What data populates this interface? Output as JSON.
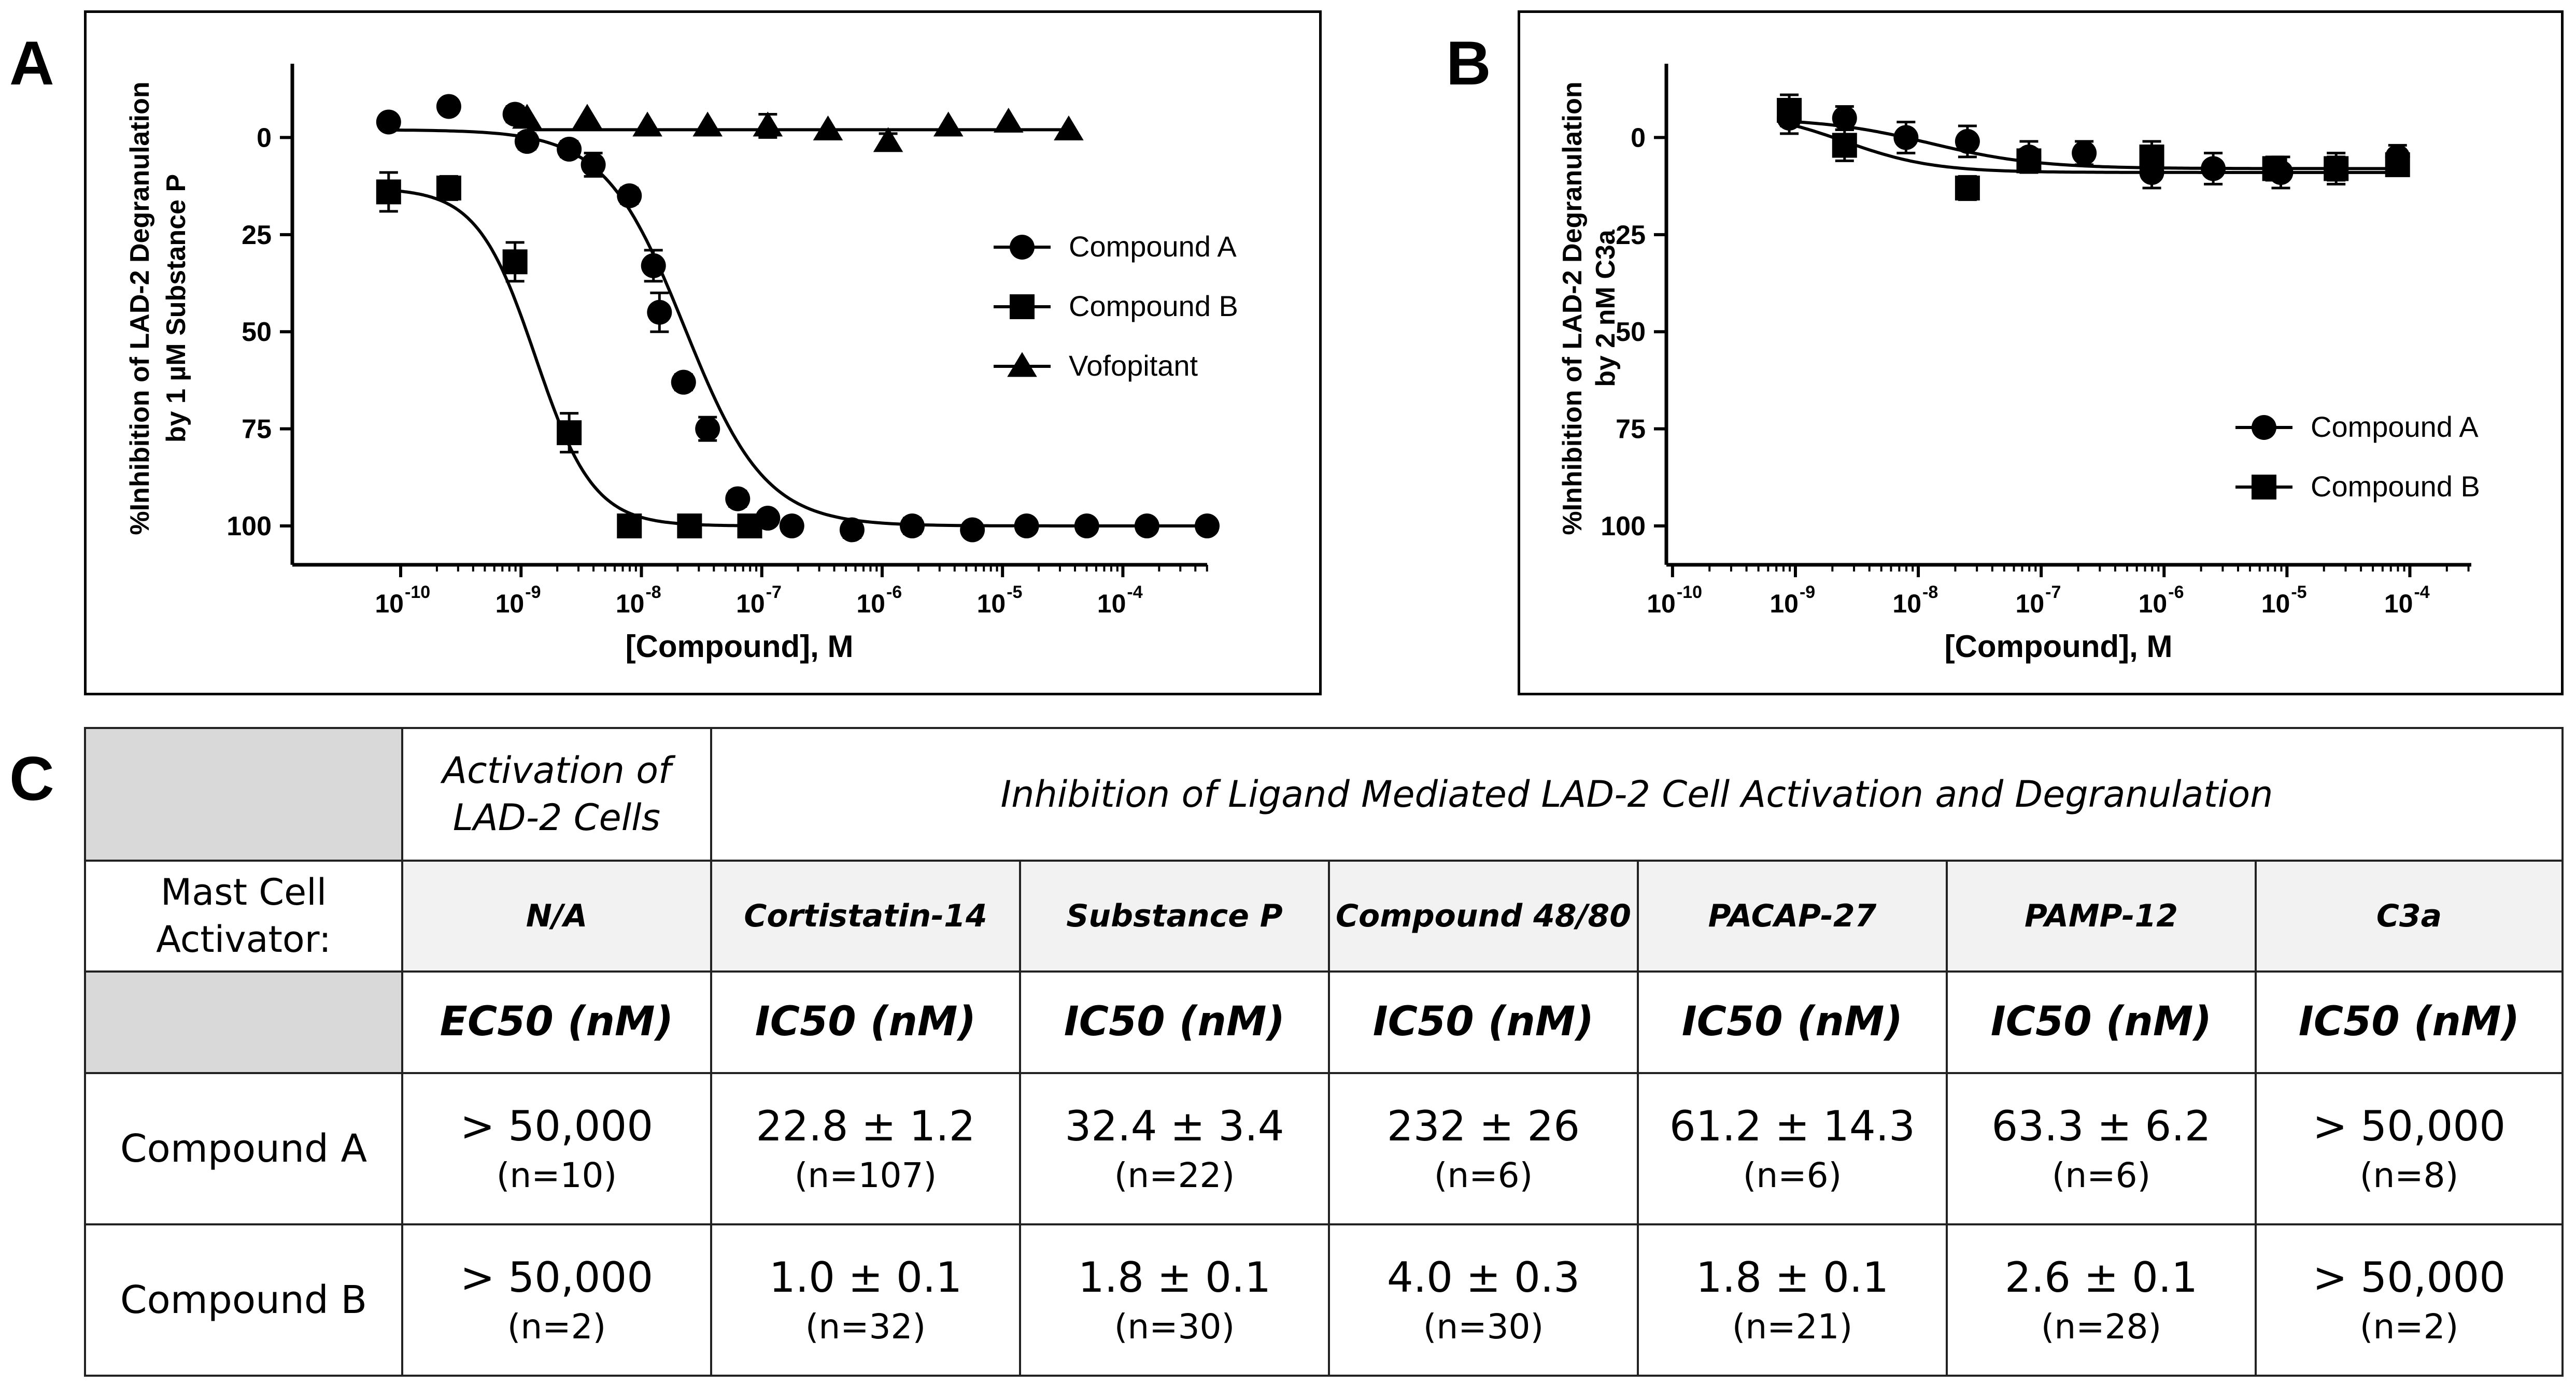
{
  "panel_labels": {
    "a": "A",
    "b": "B",
    "c": "C"
  },
  "chart_data": [
    {
      "type": "scatter",
      "panel": "A",
      "ylabel_line1": "%Inhibition of LAD-2 Degranulation",
      "ylabel_line2": "by 1 µM Substance P",
      "xlabel": "[Compound], M",
      "xscale": "log",
      "xlim_exp": [
        -10.9,
        -3.3
      ],
      "ylim": [
        110,
        -19
      ],
      "yaxis_inverted": true,
      "yticks": [
        "0",
        "25",
        "50",
        "75",
        "100"
      ],
      "xtick_exps": [
        -10,
        -9,
        -8,
        -7,
        -6,
        -5,
        -4
      ],
      "xtick_labels": [
        "10",
        "10",
        "10",
        "10",
        "10",
        "10",
        "10"
      ],
      "xtick_sups": [
        "-10",
        "-9",
        "-8",
        "-7",
        "-6",
        "-5",
        "-4"
      ],
      "legend_position": "right",
      "series": [
        {
          "name": "Compound A",
          "marker": "circle",
          "log_x": [
            -10.1,
            -9.6,
            -9.05,
            -8.95,
            -8.6,
            -8.4,
            -8.1,
            -7.9,
            -7.85,
            -7.65,
            -7.45,
            -7.2,
            -6.95,
            -6.75,
            -6.25,
            -5.75,
            -5.25,
            -4.8,
            -4.3,
            -3.8,
            -3.3
          ],
          "y": [
            -4,
            -8,
            -6,
            1,
            3,
            7,
            15,
            33,
            45,
            63,
            75,
            93,
            98,
            100,
            101,
            100,
            101,
            100,
            100,
            100,
            100
          ],
          "err": [
            0,
            0,
            2,
            2,
            2,
            3,
            2,
            4,
            5,
            2,
            3,
            2,
            1,
            1,
            2,
            2,
            1,
            1,
            1,
            1,
            1
          ],
          "fit_log_ic50": -7.64,
          "fit_hill": 1.3,
          "fit_bottom": -2,
          "fit_top": 100
        },
        {
          "name": "Compound B",
          "marker": "square",
          "log_x": [
            -10.1,
            -9.6,
            -9.05,
            -8.6,
            -8.1,
            -7.6,
            -7.1
          ],
          "y": [
            14,
            13,
            32,
            76,
            100,
            100,
            100
          ],
          "err": [
            5,
            3,
            5,
            5,
            1,
            1,
            1
          ],
          "fit_log_ic50": -8.88,
          "fit_hill": 1.8,
          "fit_bottom": 13,
          "fit_top": 100
        },
        {
          "name": "Vofopitant",
          "marker": "triangle",
          "log_x": [
            -8.95,
            -8.45,
            -7.95,
            -7.45,
            -6.95,
            -6.45,
            -5.95,
            -5.45,
            -4.95,
            -4.45
          ],
          "y": [
            -5,
            -5,
            -3,
            -3,
            -3,
            -2,
            1,
            -3,
            -4,
            -2
          ],
          "err": [
            0,
            0,
            0,
            0,
            3,
            0,
            2,
            0,
            0,
            0
          ],
          "fit_flat": -2
        }
      ]
    },
    {
      "type": "scatter",
      "panel": "B",
      "ylabel_line1": "%Inhibition of LAD-2 Degranulation",
      "ylabel_line2": "by 2 nM C3a",
      "xlabel": "[Compound], M",
      "xscale": "log",
      "xlim_exp": [
        -10.05,
        -3.5
      ],
      "ylim": [
        110,
        -19
      ],
      "yaxis_inverted": true,
      "yticks": [
        "0",
        "25",
        "50",
        "75",
        "100"
      ],
      "xtick_exps": [
        -10,
        -9,
        -8,
        -7,
        -6,
        -5,
        -4
      ],
      "xtick_labels": [
        "10",
        "10",
        "10",
        "10",
        "10",
        "10",
        "10"
      ],
      "xtick_sups": [
        "-10",
        "-9",
        "-8",
        "-7",
        "-6",
        "-5",
        "-4"
      ],
      "legend_position": "bottom-right",
      "series": [
        {
          "name": "Compound A",
          "marker": "circle",
          "log_x": [
            -9.05,
            -8.6,
            -8.1,
            -7.6,
            -7.1,
            -6.65,
            -6.1,
            -5.6,
            -5.05,
            -4.6,
            -4.1
          ],
          "y": [
            -5,
            -5,
            0,
            1,
            5,
            4,
            9,
            8,
            9,
            8,
            5
          ],
          "err": [
            4,
            3,
            4,
            4,
            4,
            3,
            4,
            4,
            4,
            4,
            3
          ],
          "fit_log_ic50": -7.9,
          "fit_hill": 1.0,
          "fit_bottom": -5,
          "fit_top": 8
        },
        {
          "name": "Compound B",
          "marker": "square",
          "log_x": [
            -9.05,
            -8.6,
            -7.6,
            -7.1,
            -6.1,
            -5.1,
            -4.6,
            -4.1
          ],
          "y": [
            -7,
            2,
            13,
            6,
            5,
            8,
            8,
            7
          ],
          "err": [
            4,
            4,
            3,
            3,
            4,
            3,
            3,
            2
          ],
          "fit_log_ic50": -8.6,
          "fit_hill": 1.2,
          "fit_bottom": -7,
          "fit_top": 9
        }
      ]
    }
  ],
  "table": {
    "header_activation": "Activation of LAD-2 Cells",
    "header_inhibition": "Inhibition of Ligand Mediated LAD-2 Cell Activation and Degranulation",
    "activator_label": "Mast Cell Activator:",
    "activators": [
      "N/A",
      "Cortistatin-14",
      "Substance P",
      "Compound 48/80",
      "PACAP-27",
      "PAMP-12",
      "C3a"
    ],
    "units": [
      "EC50 (nM)",
      "IC50 (nM)",
      "IC50 (nM)",
      "IC50 (nM)",
      "IC50 (nM)",
      "IC50 (nM)",
      "IC50 (nM)"
    ],
    "rows": [
      {
        "label": "Compound A",
        "cells": [
          {
            "value": "> 50,000",
            "n": "(n=10)"
          },
          {
            "value": "22.8 ± 1.2",
            "n": "(n=107)"
          },
          {
            "value": "32.4 ± 3.4",
            "n": "(n=22)"
          },
          {
            "value": "232 ± 26",
            "n": "(n=6)"
          },
          {
            "value": "61.2 ± 14.3",
            "n": "(n=6)"
          },
          {
            "value": "63.3 ± 6.2",
            "n": "(n=6)"
          },
          {
            "value": "> 50,000",
            "n": "(n=8)"
          }
        ]
      },
      {
        "label": "Compound B",
        "cells": [
          {
            "value": "> 50,000",
            "n": "(n=2)"
          },
          {
            "value": "1.0 ± 0.1",
            "n": "(n=32)"
          },
          {
            "value": "1.8 ± 0.1",
            "n": "(n=30)"
          },
          {
            "value": "4.0 ± 0.3",
            "n": "(n=30)"
          },
          {
            "value": "1.8 ± 0.1",
            "n": "(n=21)"
          },
          {
            "value": "2.6 ± 0.1",
            "n": "(n=28)"
          },
          {
            "value": "> 50,000",
            "n": "(n=2)"
          }
        ]
      }
    ]
  }
}
